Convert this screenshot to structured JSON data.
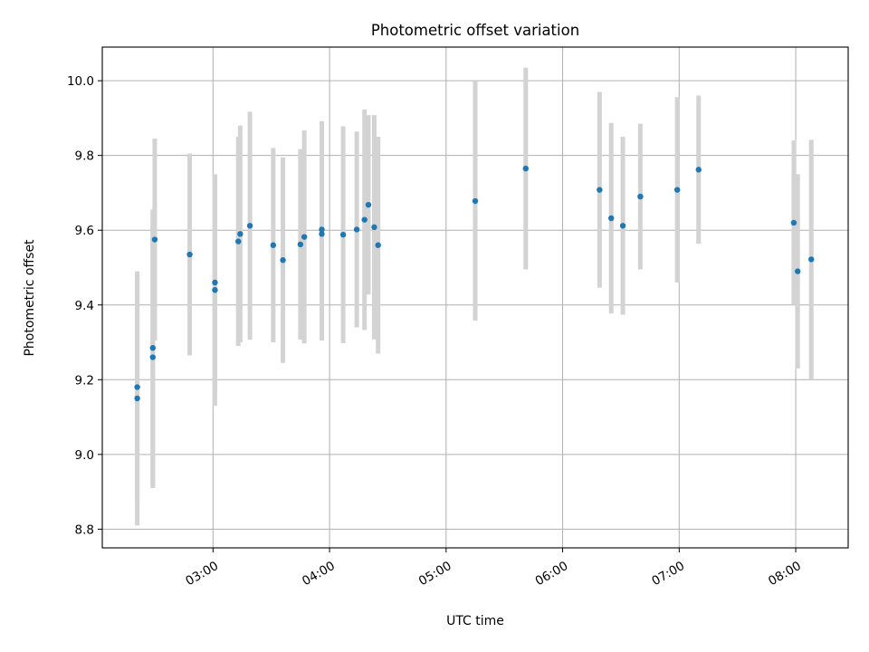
{
  "chart_data": {
    "type": "scatter",
    "title": "Photometric offset variation",
    "xlabel": "UTC time",
    "ylabel": "Photometric offset",
    "xlim": [
      "02:03",
      "08:27"
    ],
    "ylim": [
      8.75,
      10.09
    ],
    "x_ticks": [
      "03:00",
      "04:00",
      "05:00",
      "06:00",
      "07:00",
      "08:00"
    ],
    "y_ticks": [
      "8.8",
      "9.0",
      "9.2",
      "9.4",
      "9.6",
      "9.8",
      "10.0"
    ],
    "grid": true,
    "colors": {
      "point": "#1f77b4",
      "errorbar": "#d3d3d3",
      "grid": "#b0b0b0"
    },
    "points": [
      {
        "x": "02:21",
        "y": 9.15,
        "err": 0.34
      },
      {
        "x": "02:21",
        "y": 9.18,
        "err": 0.3
      },
      {
        "x": "02:29",
        "y": 9.26,
        "err": 0.35
      },
      {
        "x": "02:29",
        "y": 9.285,
        "err": 0.37
      },
      {
        "x": "02:30",
        "y": 9.575,
        "err": 0.27
      },
      {
        "x": "02:48",
        "y": 9.535,
        "err": 0.27
      },
      {
        "x": "03:01",
        "y": 9.46,
        "err": 0.29
      },
      {
        "x": "03:01",
        "y": 9.44,
        "err": 0.31
      },
      {
        "x": "03:13",
        "y": 9.57,
        "err": 0.28
      },
      {
        "x": "03:14",
        "y": 9.59,
        "err": 0.29
      },
      {
        "x": "03:19",
        "y": 9.612,
        "err": 0.305
      },
      {
        "x": "03:31",
        "y": 9.56,
        "err": 0.26
      },
      {
        "x": "03:36",
        "y": 9.52,
        "err": 0.275
      },
      {
        "x": "03:45",
        "y": 9.562,
        "err": 0.255
      },
      {
        "x": "03:47",
        "y": 9.582,
        "err": 0.285
      },
      {
        "x": "03:56",
        "y": 9.59,
        "err": 0.285
      },
      {
        "x": "03:56",
        "y": 9.602,
        "err": 0.29
      },
      {
        "x": "04:07",
        "y": 9.588,
        "err": 0.29
      },
      {
        "x": "04:14",
        "y": 9.602,
        "err": 0.262
      },
      {
        "x": "04:18",
        "y": 9.628,
        "err": 0.295
      },
      {
        "x": "04:20",
        "y": 9.668,
        "err": 0.24
      },
      {
        "x": "04:23",
        "y": 9.608,
        "err": 0.3
      },
      {
        "x": "04:25",
        "y": 9.56,
        "err": 0.29
      },
      {
        "x": "05:15",
        "y": 9.678,
        "err": 0.32
      },
      {
        "x": "05:41",
        "y": 9.765,
        "err": 0.27
      },
      {
        "x": "06:19",
        "y": 9.708,
        "err": 0.262
      },
      {
        "x": "06:25",
        "y": 9.632,
        "err": 0.255
      },
      {
        "x": "06:31",
        "y": 9.612,
        "err": 0.238
      },
      {
        "x": "06:40",
        "y": 9.69,
        "err": 0.195
      },
      {
        "x": "06:59",
        "y": 9.708,
        "err": 0.248
      },
      {
        "x": "07:10",
        "y": 9.762,
        "err": 0.198
      },
      {
        "x": "07:59",
        "y": 9.62,
        "err": 0.22
      },
      {
        "x": "08:01",
        "y": 9.49,
        "err": 0.26
      },
      {
        "x": "08:08",
        "y": 9.522,
        "err": 0.32
      }
    ]
  }
}
